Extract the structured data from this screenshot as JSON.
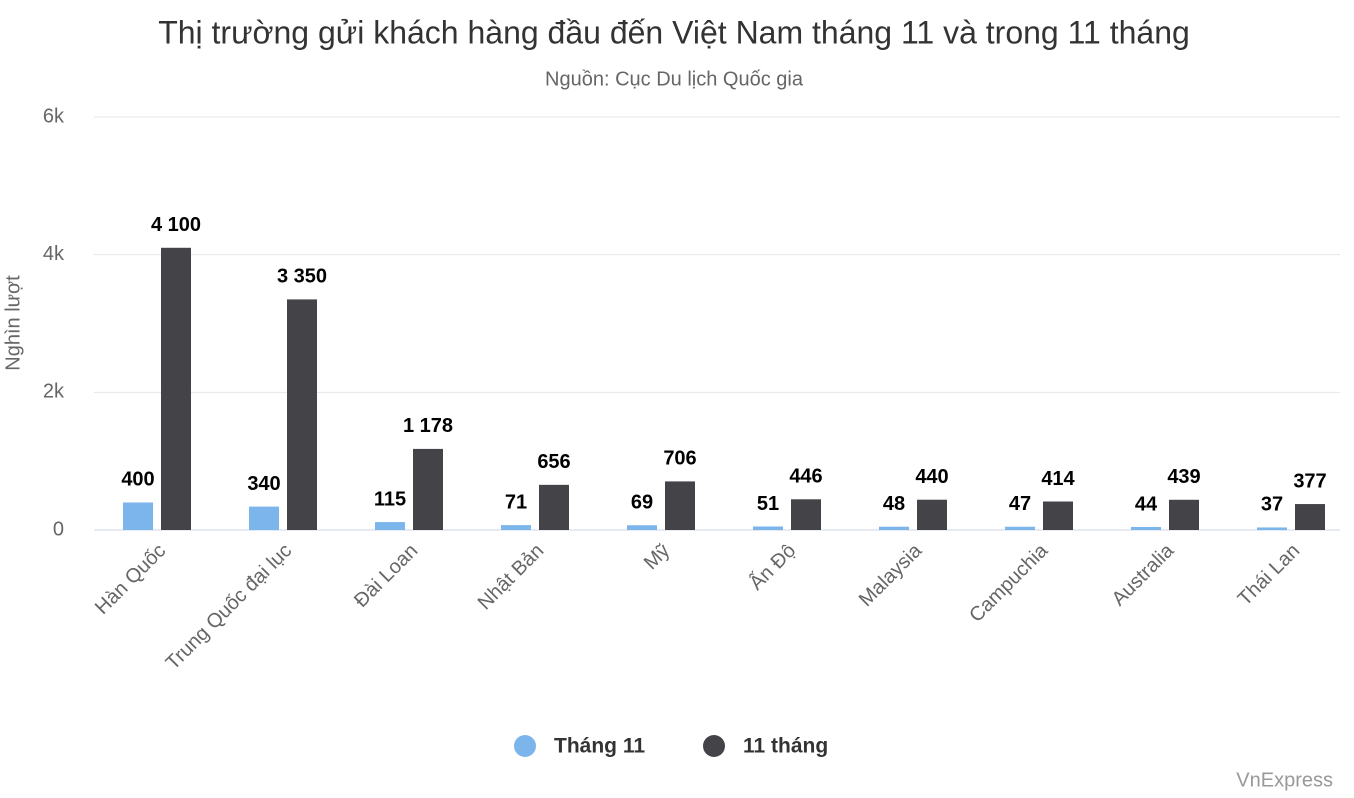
{
  "chart_data": {
    "type": "bar",
    "title": "Thị trường gửi khách hàng đầu đến Việt Nam tháng 11 và trong 11 tháng",
    "subtitle": "Nguồn: Cục Du lịch Quốc gia",
    "y_label": "Nghìn lượt",
    "credits": "VnExpress",
    "categories": [
      "Hàn Quốc",
      "Trung Quốc đại lục",
      "Đài Loan",
      "Nhật Bản",
      "Mỹ",
      "Ấn Độ",
      "Malaysia",
      "Campuchia",
      "Australia",
      "Thái Lan"
    ],
    "series": [
      {
        "name": "Tháng 11",
        "color": "#7cb5ec",
        "values": [
          400,
          340,
          115,
          71,
          69,
          51,
          48,
          47,
          44,
          37
        ],
        "value_labels": [
          "400",
          "340",
          "115",
          "71",
          "69",
          "51",
          "48",
          "47",
          "44",
          "37"
        ]
      },
      {
        "name": "11 tháng",
        "color": "#434348",
        "values": [
          4100,
          3350,
          1178,
          656,
          706,
          446,
          440,
          414,
          439,
          377
        ],
        "value_labels": [
          "4 100",
          "3 350",
          "1 178",
          "656",
          "706",
          "446",
          "440",
          "414",
          "439",
          "377"
        ]
      }
    ],
    "ylim": [
      0,
      6000
    ],
    "yticks": [
      0,
      {
        "value": 2000,
        "label": "2k"
      },
      {
        "value": 4000,
        "label": "4k"
      },
      {
        "value": 6000,
        "label": "6k"
      }
    ],
    "grid": true,
    "legend": "bottom"
  }
}
